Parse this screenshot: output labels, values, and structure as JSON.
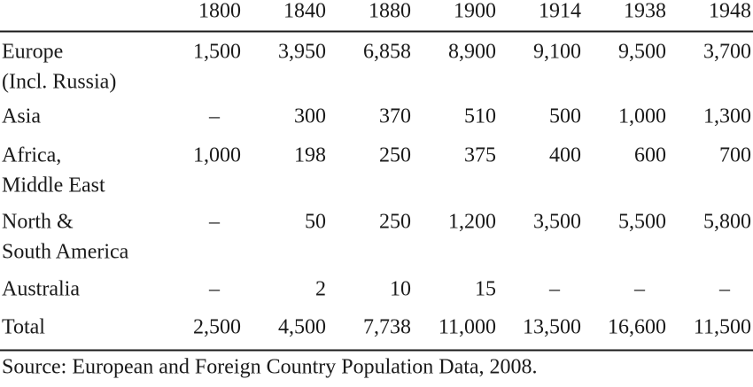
{
  "table": {
    "columns": [
      "1800",
      "1840",
      "1880",
      "1900",
      "1914",
      "1938",
      "1948"
    ],
    "rows": [
      {
        "label": [
          "Europe",
          "(Incl. Russia)"
        ],
        "values": [
          "1,500",
          "3,950",
          "6,858",
          "8,900",
          "9,100",
          "9,500",
          "3,700"
        ]
      },
      {
        "label": [
          "Asia"
        ],
        "values": [
          "–",
          "300",
          "370",
          "510",
          "500",
          "1,000",
          "1,300"
        ]
      },
      {
        "label": [
          "Africa,",
          "Middle East"
        ],
        "values": [
          "1,000",
          "198",
          "250",
          "375",
          "400",
          "600",
          "700"
        ]
      },
      {
        "label": [
          "North &",
          "South America"
        ],
        "values": [
          "–",
          "50",
          "250",
          "1,200",
          "3,500",
          "5,500",
          "5,800"
        ]
      },
      {
        "label": [
          "Australia"
        ],
        "values": [
          "–",
          "2",
          "10",
          "15",
          "–",
          "–",
          "–"
        ]
      },
      {
        "label": [
          "Total"
        ],
        "values": [
          "2,500",
          "4,500",
          "7,738",
          "11,000",
          "13,500",
          "16,600",
          "11,500"
        ]
      }
    ],
    "source": "Source: European and Foreign Country Population Data, 2008."
  }
}
